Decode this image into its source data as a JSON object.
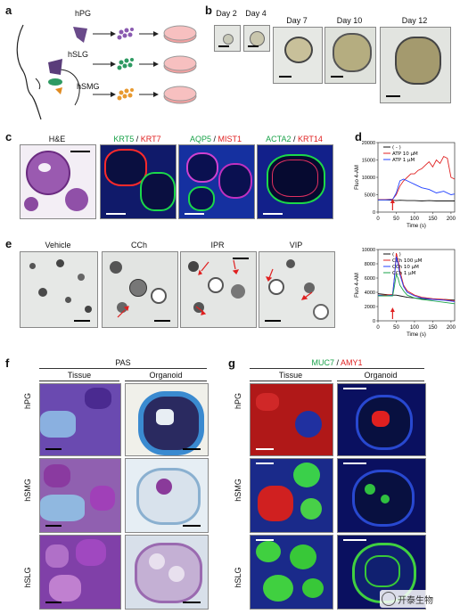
{
  "panels": {
    "a": {
      "label": "a",
      "glands": [
        "hPG",
        "hSLG",
        "hSMG"
      ]
    },
    "b": {
      "label": "b",
      "days": [
        "Day 2",
        "Day 4",
        "Day 7",
        "Day 10",
        "Day 12"
      ]
    },
    "c": {
      "label": "c",
      "he": "H&E",
      "stains": [
        {
          "g": "KRT5",
          "sep": " / ",
          "r": "KRT7"
        },
        {
          "g": "AQP5",
          "sep": " / ",
          "r": "MIST1"
        },
        {
          "g": "ACTA2",
          "sep": " / ",
          "r": "KRT14"
        }
      ]
    },
    "d": {
      "label": "d"
    },
    "e": {
      "label": "e",
      "conditions": [
        "Vehicle",
        "CCh",
        "IPR",
        "VIP"
      ]
    },
    "f": {
      "label": "f",
      "title": "PAS",
      "cols": [
        "Tissue",
        "Organoid"
      ],
      "rows": [
        "hPG",
        "hSMG",
        "hSLG"
      ]
    },
    "g": {
      "label": "g",
      "title_g": "MUC7",
      "title_sep": " / ",
      "title_r": "AMY1",
      "cols": [
        "Tissue",
        "Organoid"
      ],
      "rows": [
        "hPG",
        "hSMG",
        "hSLG"
      ]
    }
  },
  "watermark": "开泰生物",
  "colors": {
    "green": "#1aa34a",
    "red": "#e02020",
    "blue": "#2040ff",
    "black": "#111111",
    "arrow": "#e02020"
  },
  "chart_data": [
    {
      "type": "line",
      "panel": "d",
      "xlabel": "Time (s)",
      "ylabel": "Fluo 4-AM",
      "xlim": [
        0,
        210
      ],
      "ylim": [
        0,
        20000
      ],
      "xticks": [
        0,
        50,
        100,
        150,
        200
      ],
      "yticks": [
        0,
        5000,
        10000,
        15000,
        20000
      ],
      "series": [
        {
          "name": "( - )",
          "color": "#111111",
          "x": [
            0,
            20,
            40,
            50,
            60,
            80,
            100,
            120,
            140,
            160,
            180,
            200,
            210
          ],
          "y": [
            3500,
            3500,
            3400,
            3300,
            3400,
            3300,
            3300,
            3200,
            3300,
            3200,
            3200,
            3200,
            3200
          ]
        },
        {
          "name": "ATP 10 μM",
          "color": "#e02020",
          "x": [
            0,
            20,
            40,
            50,
            60,
            70,
            80,
            90,
            100,
            110,
            120,
            130,
            140,
            150,
            160,
            170,
            180,
            190,
            200,
            210
          ],
          "y": [
            3600,
            3600,
            3700,
            5000,
            7500,
            9000,
            10000,
            11000,
            11000,
            12000,
            12500,
            13500,
            14500,
            13000,
            15000,
            14000,
            16000,
            15500,
            10000,
            9500
          ]
        },
        {
          "name": "ATP 1 μM",
          "color": "#2040ff",
          "x": [
            0,
            20,
            40,
            50,
            60,
            70,
            80,
            90,
            100,
            120,
            140,
            160,
            180,
            200,
            210
          ],
          "y": [
            3500,
            3500,
            3600,
            5500,
            9000,
            9500,
            9000,
            8500,
            8000,
            7000,
            6500,
            5500,
            6000,
            5000,
            5200
          ]
        }
      ]
    },
    {
      "type": "line",
      "panel": "e",
      "xlabel": "Time (s)",
      "ylabel": "Fluo 4-AM",
      "xlim": [
        0,
        210
      ],
      "ylim": [
        0,
        10000
      ],
      "xticks": [
        0,
        50,
        100,
        150,
        200
      ],
      "yticks": [
        0,
        2000,
        4000,
        6000,
        8000,
        10000
      ],
      "series": [
        {
          "name": "( - )",
          "color": "#111111",
          "x": [
            0,
            20,
            40,
            50,
            60,
            80,
            100,
            120,
            150,
            180,
            210
          ],
          "y": [
            3800,
            3700,
            3600,
            3600,
            3500,
            3300,
            3200,
            3100,
            3000,
            3000,
            2900
          ]
        },
        {
          "name": "CCh 100 μM",
          "color": "#e02020",
          "x": [
            0,
            20,
            40,
            45,
            50,
            55,
            60,
            70,
            80,
            100,
            120,
            150,
            180,
            210
          ],
          "y": [
            3600,
            3600,
            3700,
            6000,
            9500,
            8500,
            7000,
            5000,
            4200,
            3600,
            3300,
            3100,
            3000,
            2800
          ]
        },
        {
          "name": "CCh 10 μM",
          "color": "#2040ff",
          "x": [
            0,
            20,
            40,
            45,
            50,
            55,
            60,
            70,
            80,
            100,
            120,
            150,
            180,
            210
          ],
          "y": [
            3600,
            3500,
            3600,
            6000,
            9000,
            8000,
            6500,
            4800,
            4000,
            3500,
            3200,
            3000,
            2900,
            2700
          ]
        },
        {
          "name": "CCh 1 μM",
          "color": "#1aa34a",
          "x": [
            0,
            20,
            40,
            45,
            50,
            55,
            60,
            70,
            80,
            100,
            120,
            150,
            180,
            210
          ],
          "y": [
            3500,
            3500,
            3500,
            4800,
            6500,
            6000,
            5000,
            4200,
            3600,
            3200,
            3000,
            2800,
            2600,
            2400
          ]
        }
      ]
    }
  ]
}
